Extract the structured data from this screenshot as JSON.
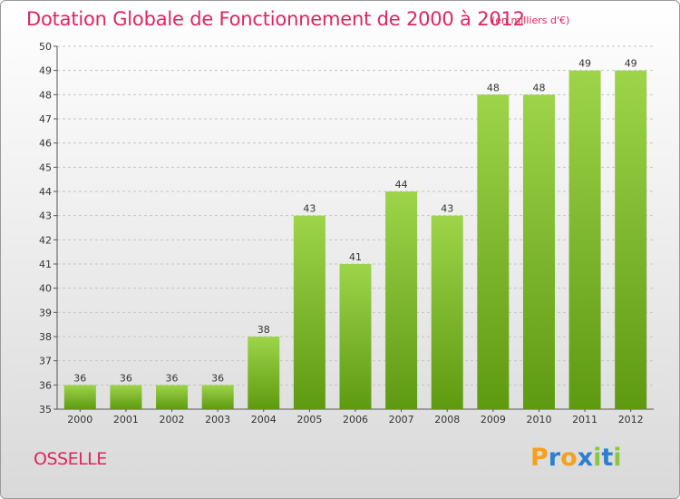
{
  "chart_data": {
    "type": "bar",
    "title": "Dotation Globale de Fonctionnement de 2000 à 2012",
    "units_note": "(en milliers d'€)",
    "categories": [
      "2000",
      "2001",
      "2002",
      "2003",
      "2004",
      "2005",
      "2006",
      "2007",
      "2008",
      "2009",
      "2010",
      "2011",
      "2012"
    ],
    "values": [
      36,
      36,
      36,
      36,
      38,
      43,
      41,
      44,
      43,
      48,
      48,
      49,
      49
    ],
    "ylim": [
      35,
      50
    ],
    "yticks": [
      35,
      36,
      37,
      38,
      39,
      40,
      41,
      42,
      43,
      44,
      45,
      46,
      47,
      48,
      49,
      50
    ],
    "grid": true,
    "bar_color_top": "#9dd44a",
    "bar_color_bottom": "#5e9a10"
  },
  "commune": "OSSELLE",
  "logo": {
    "letters": [
      "P",
      "r",
      "o",
      "x",
      "i",
      "t",
      "i"
    ],
    "colors": [
      "#f5a11c",
      "#2e7fd1",
      "#f5a11c",
      "#2e7fd1",
      "#8cc63f",
      "#2e7fd1",
      "#8cc63f"
    ]
  }
}
